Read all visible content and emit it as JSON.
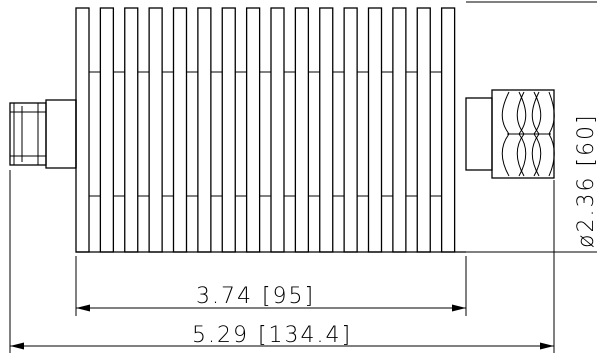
{
  "drawing": {
    "fin_count": 16,
    "dimensions": {
      "body_length": "3.74 [95]",
      "overall_length": "5.29 [134.4]",
      "diameter": "ø2.36 [60]"
    }
  }
}
